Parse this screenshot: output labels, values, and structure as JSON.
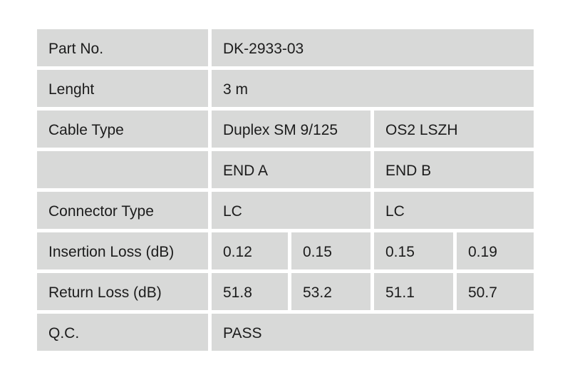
{
  "colors": {
    "background": "#ffffff",
    "cell_background": "#d8d9d8",
    "text": "#1c1c1c"
  },
  "table": {
    "part_no": {
      "label": "Part No.",
      "value": "DK-2933-03"
    },
    "length": {
      "label": "Lenght",
      "value": "3 m"
    },
    "cable_type": {
      "label": "Cable Type",
      "value_a": "Duplex SM 9/125",
      "value_b": "OS2 LSZH"
    },
    "end_headers": {
      "label": "",
      "end_a": "END A",
      "end_b": "END B"
    },
    "connector_type": {
      "label": "Connector Type",
      "end_a": "LC",
      "end_b": "LC"
    },
    "insertion_loss": {
      "label": "Insertion Loss (dB)",
      "a1": "0.12",
      "a2": "0.15",
      "b1": "0.15",
      "b2": "0.19"
    },
    "return_loss": {
      "label": "Return Loss (dB)",
      "a1": "51.8",
      "a2": "53.2",
      "b1": "51.1",
      "b2": "50.7"
    },
    "qc": {
      "label": "Q.C.",
      "value": "PASS"
    }
  }
}
